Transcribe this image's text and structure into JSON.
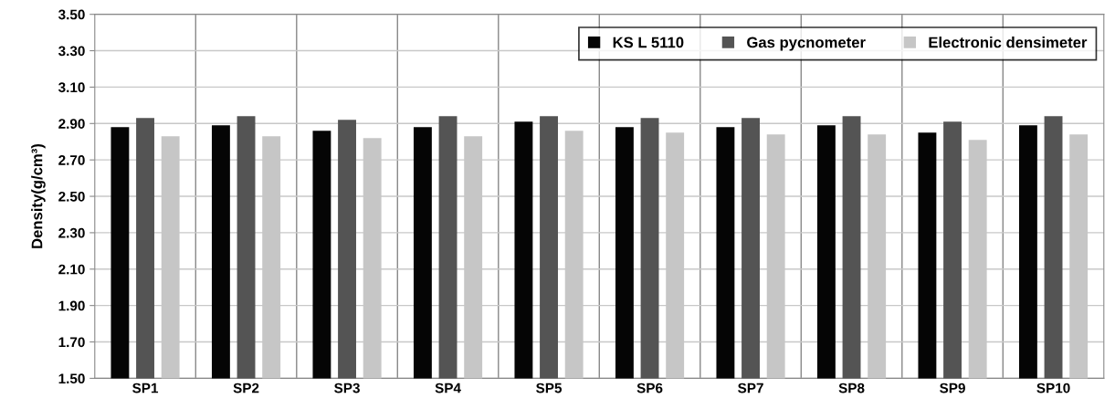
{
  "chart_data": {
    "type": "bar",
    "ylabel": "Density(g/cm³)",
    "categories": [
      "SP1",
      "SP2",
      "SP3",
      "SP4",
      "SP5",
      "SP6",
      "SP7",
      "SP8",
      "SP9",
      "SP10"
    ],
    "series": [
      {
        "name": "KS L 5110",
        "color": "#050505",
        "values": [
          2.88,
          2.89,
          2.86,
          2.88,
          2.91,
          2.88,
          2.88,
          2.89,
          2.85,
          2.89
        ]
      },
      {
        "name": "Gas pycnometer",
        "color": "#545454",
        "values": [
          2.93,
          2.94,
          2.92,
          2.94,
          2.94,
          2.93,
          2.93,
          2.94,
          2.91,
          2.94
        ]
      },
      {
        "name": "Electronic densimeter",
        "color": "#c6c6c6",
        "values": [
          2.83,
          2.83,
          2.82,
          2.83,
          2.86,
          2.85,
          2.84,
          2.84,
          2.81,
          2.84
        ]
      }
    ],
    "ylim": [
      1.5,
      3.5
    ],
    "yticks": [
      {
        "value": 1.5,
        "label": "1.50"
      },
      {
        "value": 1.7,
        "label": "1.70"
      },
      {
        "value": 1.9,
        "label": "1.90"
      },
      {
        "value": 2.1,
        "label": "2.10"
      },
      {
        "value": 2.3,
        "label": "2.30"
      },
      {
        "value": 2.5,
        "label": "2.50"
      },
      {
        "value": 2.7,
        "label": "2.70"
      },
      {
        "value": 2.9,
        "label": "2.90"
      },
      {
        "value": 3.1,
        "label": "3.10"
      },
      {
        "value": 3.3,
        "label": "3.30"
      },
      {
        "value": 3.5,
        "label": "3.50"
      }
    ],
    "grid": true,
    "legend": "top right"
  }
}
